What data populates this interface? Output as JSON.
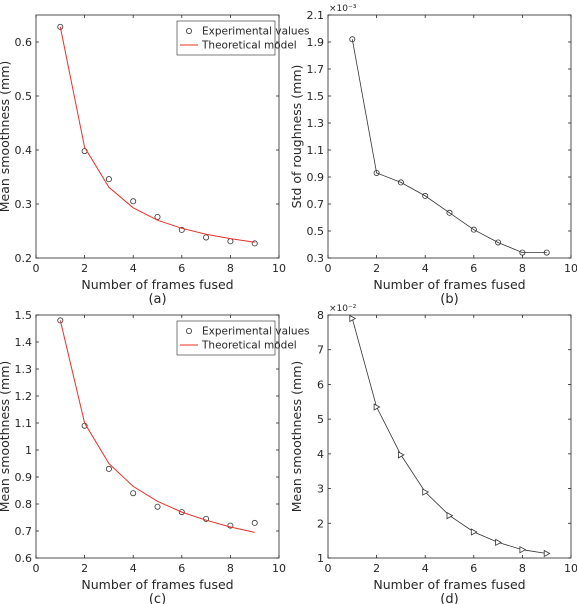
{
  "chart_data": [
    {
      "panel": "(a)",
      "type": "line",
      "xlabel": "Number of frames fused",
      "ylabel": "Mean smoothness (mm)",
      "xlim": [
        0,
        10
      ],
      "ylim": [
        0.2,
        0.65
      ],
      "xticks": [
        0,
        2,
        4,
        6,
        8,
        10
      ],
      "yticks": [
        0.2,
        0.3,
        0.4,
        0.5,
        0.6
      ],
      "yticklabels": [
        "0.2",
        "0.3",
        "0.4",
        "0.5",
        "0.6"
      ],
      "yexponent": "",
      "grid": false,
      "legend_position": "top-right",
      "series": [
        {
          "name": "Experimental values",
          "style": "markers",
          "marker": "circle",
          "color": "#333333",
          "x": [
            1,
            2,
            3,
            4,
            5,
            6,
            7,
            8,
            9
          ],
          "y": [
            0.628,
            0.398,
            0.346,
            0.305,
            0.276,
            0.252,
            0.238,
            0.231,
            0.227
          ]
        },
        {
          "name": "Theoretical model",
          "style": "line",
          "color": "#e8312a",
          "x": [
            1,
            2,
            3,
            4,
            5,
            6,
            7,
            8,
            9
          ],
          "y": [
            0.628,
            0.405,
            0.331,
            0.293,
            0.27,
            0.255,
            0.244,
            0.236,
            0.229
          ]
        }
      ]
    },
    {
      "panel": "(b)",
      "type": "line",
      "xlabel": "Number of frames fused",
      "ylabel": "Std of roughness (mm)",
      "xlim": [
        0,
        10
      ],
      "ylim": [
        0.3,
        2.1
      ],
      "xticks": [
        0,
        2,
        4,
        6,
        8,
        10
      ],
      "yticks": [
        0.3,
        0.5,
        0.7,
        0.9,
        1.1,
        1.3,
        1.5,
        1.7,
        1.9,
        2.1
      ],
      "yticklabels": [
        "0.3",
        "0.5",
        "0.7",
        "0.9",
        "1.1",
        "1.3",
        "1.5",
        "1.7",
        "1.9",
        "2.1"
      ],
      "yexponent": "×10⁻³",
      "grid": false,
      "series": [
        {
          "style": "line-markers",
          "marker": "circle",
          "color": "#333333",
          "x": [
            1,
            2,
            3,
            4,
            5,
            6,
            7,
            8,
            9
          ],
          "y": [
            1.92,
            0.93,
            0.86,
            0.76,
            0.635,
            0.51,
            0.415,
            0.34,
            0.34
          ]
        }
      ]
    },
    {
      "panel": "(c)",
      "type": "line",
      "xlabel": "Number of frames fused",
      "ylabel": "Mean smoothness (mm)",
      "xlim": [
        0,
        10
      ],
      "ylim": [
        0.6,
        1.5
      ],
      "xticks": [
        0,
        2,
        4,
        6,
        8,
        10
      ],
      "yticks": [
        0.6,
        0.7,
        0.8,
        0.9,
        1.0,
        1.1,
        1.2,
        1.3,
        1.4,
        1.5
      ],
      "yticklabels": [
        "0.6",
        "0.7",
        "0.8",
        "0.9",
        "1",
        "1.1",
        "1.2",
        "1.3",
        "1.4",
        "1.5"
      ],
      "yexponent": "",
      "grid": false,
      "legend_position": "top-right",
      "series": [
        {
          "name": "Experimental values",
          "style": "markers",
          "marker": "circle",
          "color": "#333333",
          "x": [
            1,
            2,
            3,
            4,
            5,
            6,
            7,
            8,
            9
          ],
          "y": [
            1.48,
            1.09,
            0.93,
            0.84,
            0.79,
            0.77,
            0.745,
            0.72,
            0.73
          ]
        },
        {
          "name": "Theoretical model",
          "style": "line",
          "color": "#e8312a",
          "x": [
            1,
            2,
            3,
            4,
            5,
            6,
            7,
            8,
            9
          ],
          "y": [
            1.48,
            1.1,
            0.95,
            0.865,
            0.81,
            0.77,
            0.74,
            0.715,
            0.695
          ]
        }
      ]
    },
    {
      "panel": "(d)",
      "type": "line",
      "xlabel": "Number of frames fused",
      "ylabel": "Mean smoothness (mm)",
      "xlim": [
        0,
        10
      ],
      "ylim": [
        1,
        8
      ],
      "xticks": [
        0,
        2,
        4,
        6,
        8,
        10
      ],
      "yticks": [
        1,
        2,
        3,
        4,
        5,
        6,
        7,
        8
      ],
      "yticklabels": [
        "1",
        "2",
        "3",
        "4",
        "5",
        "6",
        "7",
        "8"
      ],
      "yexponent": "×10⁻²",
      "grid": false,
      "series": [
        {
          "style": "line-markers",
          "marker": "triangle-right",
          "color": "#333333",
          "x": [
            1,
            2,
            3,
            4,
            5,
            6,
            7,
            8,
            9
          ],
          "y": [
            7.9,
            5.35,
            3.97,
            2.9,
            2.22,
            1.75,
            1.45,
            1.24,
            1.13
          ]
        }
      ]
    }
  ]
}
